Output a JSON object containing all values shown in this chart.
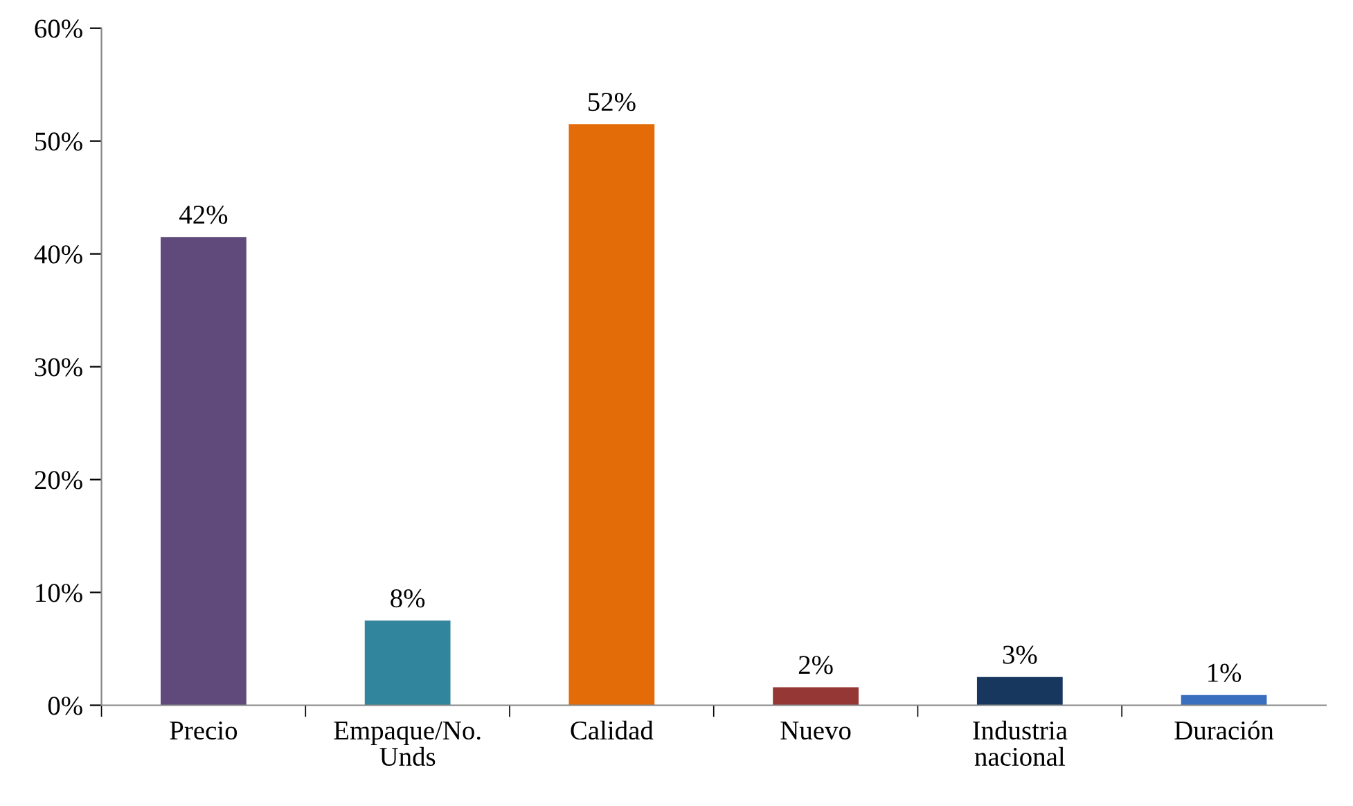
{
  "chart_data": {
    "type": "bar",
    "categories": [
      "Precio",
      "Empaque/No.\nUnds",
      "Calidad",
      "Nuevo",
      "Industria\nnacional",
      "Duración"
    ],
    "values": [
      41.5,
      7.5,
      51.5,
      1.6,
      2.5,
      0.9
    ],
    "colors": [
      "#604a7b",
      "#31859c",
      "#e36c09",
      "#953735",
      "#17375e",
      "#3a6fc0"
    ],
    "value_labels": [
      "42%",
      "8%",
      "52%",
      "2%",
      "3%",
      "1%"
    ],
    "ylim": [
      0,
      60
    ],
    "yticks": [
      {
        "value": 0,
        "label": "0%"
      },
      {
        "value": 10,
        "label": "10%"
      },
      {
        "value": 20,
        "label": "20%"
      },
      {
        "value": 30,
        "label": "30%"
      },
      {
        "value": 40,
        "label": "40%"
      },
      {
        "value": 50,
        "label": "50%"
      },
      {
        "value": 60,
        "label": "60%"
      }
    ],
    "grid": false,
    "legend": false
  }
}
